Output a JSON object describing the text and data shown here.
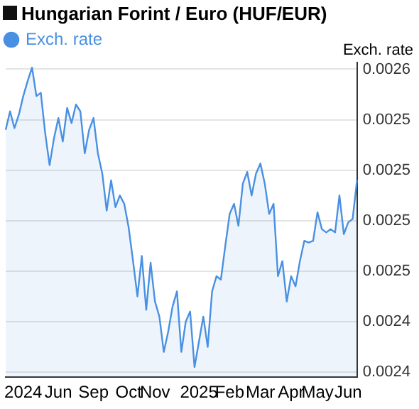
{
  "chart_data": {
    "type": "area",
    "title": "Hungarian Forint / Euro (HUF/EUR)",
    "ylabel": "Exch. rate",
    "categories": [
      null,
      null,
      null,
      null,
      "2024",
      null,
      null,
      null,
      null,
      null,
      null,
      null,
      "Jun",
      null,
      null,
      null,
      null,
      null,
      null,
      null,
      "Sep",
      null,
      null,
      null,
      null,
      null,
      null,
      null,
      "Oct",
      null,
      null,
      null,
      null,
      null,
      "Nov",
      null,
      null,
      null,
      null,
      null,
      null,
      null,
      null,
      null,
      "2025",
      null,
      null,
      null,
      null,
      null,
      null,
      "Feb",
      null,
      null,
      null,
      null,
      null,
      null,
      "Mar",
      null,
      null,
      null,
      null,
      null,
      null,
      "Apr",
      null,
      null,
      null,
      null,
      null,
      "May",
      null,
      null,
      null,
      null,
      null,
      null,
      "Jun",
      null,
      null
    ],
    "series": [
      {
        "name": "Exch. rate",
        "color": "#4a90e2",
        "values": [
          0.002544,
          0.002555,
          0.002545,
          0.002553,
          0.002564,
          0.002573,
          0.002581,
          0.002564,
          0.002566,
          0.002542,
          0.002523,
          0.002539,
          0.002551,
          0.002537,
          0.002557,
          0.002548,
          0.002559,
          0.002555,
          0.00253,
          0.002544,
          0.002551,
          0.00253,
          0.002518,
          0.002496,
          0.002514,
          0.002498,
          0.002505,
          0.0025,
          0.002486,
          0.002466,
          0.002445,
          0.002469,
          0.002437,
          0.002465,
          0.002442,
          0.002433,
          0.002412,
          0.002424,
          0.002439,
          0.002448,
          0.002412,
          0.00243,
          0.002436,
          0.002403,
          0.002418,
          0.002433,
          0.002415,
          0.002448,
          0.002457,
          0.002455,
          0.002475,
          0.002494,
          0.0025,
          0.002487,
          0.002512,
          0.002519,
          0.002505,
          0.002518,
          0.002524,
          0.002512,
          0.002494,
          0.0025,
          0.002457,
          0.002466,
          0.002442,
          0.002457,
          0.002451,
          0.002466,
          0.002478,
          0.002477,
          0.002478,
          0.002495,
          0.002485,
          0.002483,
          0.002485,
          0.002483,
          0.002505,
          0.002482,
          0.002489,
          0.002491,
          0.002514
        ]
      }
    ],
    "ylim": [
      0.002397,
      0.002584
    ],
    "yticks": [
      0.0024,
      {
        "value": 0.00243,
        "label": "0.0024"
      },
      {
        "value": 0.00246,
        "label": "0.0025"
      },
      {
        "value": 0.00249,
        "label": "0.0025"
      },
      {
        "value": 0.00252,
        "label": "0.0025"
      },
      {
        "value": 0.00255,
        "label": "0.0025"
      },
      {
        "value": 0.00258,
        "label": "0.0026"
      }
    ],
    "grid": "y",
    "legend": "top left",
    "marker": "none",
    "line_style": "solid"
  }
}
